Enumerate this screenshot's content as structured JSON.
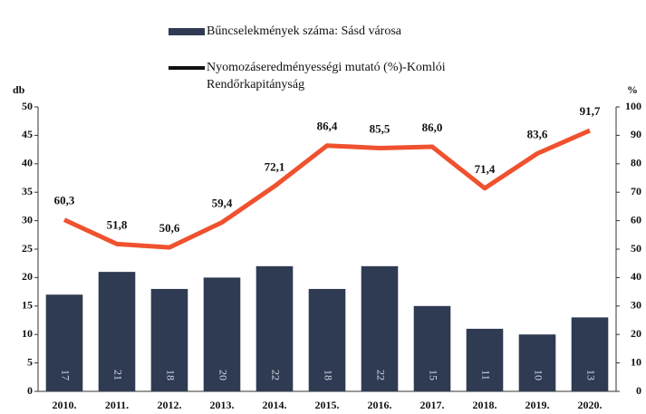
{
  "chart_data": {
    "type": "bar-line",
    "categories": [
      "2010.",
      "2011.",
      "2012.",
      "2013.",
      "2014.",
      "2015.",
      "2016.",
      "2017.",
      "2018.",
      "2019.",
      "2020."
    ],
    "ylabel": "db",
    "y2label": "%",
    "ylim": [
      0,
      50
    ],
    "yticks": [
      0,
      5,
      10,
      15,
      20,
      25,
      30,
      35,
      40,
      45,
      50
    ],
    "y2lim": [
      0,
      100
    ],
    "y2ticks": [
      0,
      10,
      20,
      30,
      40,
      50,
      60,
      70,
      80,
      90,
      100
    ],
    "series": [
      {
        "name": "Bűncselekmények száma: Sásd városa",
        "color": "#2f3b52",
        "kind": "bar",
        "values": [
          17,
          21,
          18,
          20,
          22,
          18,
          22,
          15,
          11,
          10,
          13
        ]
      },
      {
        "name": "Nyomozáseredményességi mutató (%)-Komlói Rendőrkapitányság",
        "color": "#f0512e",
        "kind": "line",
        "axis": "y2",
        "values": [
          60.3,
          51.8,
          50.6,
          59.4,
          72.1,
          86.4,
          85.5,
          86.0,
          71.4,
          83.6,
          91.7
        ],
        "value_labels": [
          "60,3",
          "51,8",
          "50,6",
          "59,4",
          "72,1",
          "86,4",
          "85,5",
          "86,0",
          "71,4",
          "83,6",
          "91,7"
        ]
      }
    ]
  }
}
